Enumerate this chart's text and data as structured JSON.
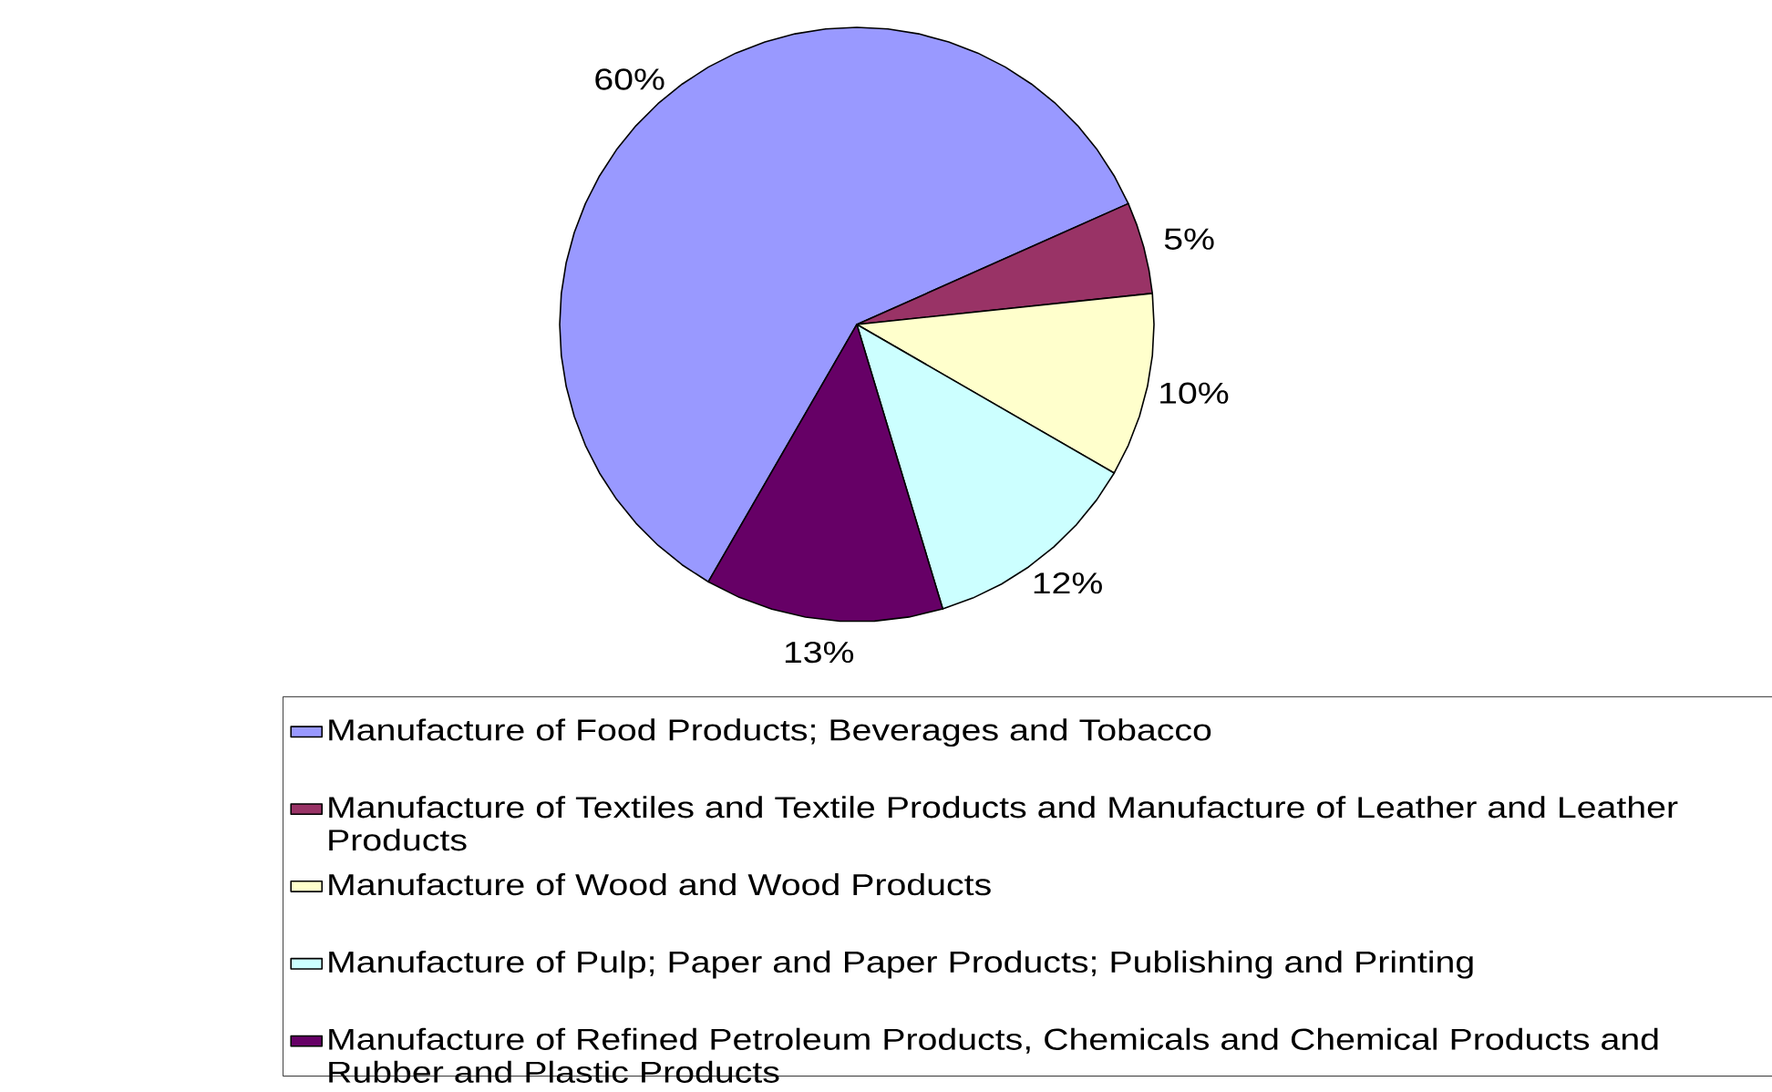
{
  "chart_data": {
    "type": "pie",
    "categories": [
      "Manufacture of Food Products; Beverages and Tobacco",
      "Manufacture of Textiles and Textile Products and Manufacture of Leather and Leather Products",
      "Manufacture of Wood and Wood Products",
      "Manufacture of Pulp; Paper and Paper Products; Publishing and Printing",
      "Manufacture of Refined Petroleum Products, Chemicals and Chemical Products and Rubber and Plastic Products"
    ],
    "values": [
      60,
      5,
      10,
      12,
      13
    ],
    "value_labels": [
      "60%",
      "5%",
      "10%",
      "12%",
      "13%"
    ],
    "colors": [
      "#9999ff",
      "#993366",
      "#ffffcc",
      "#ccffff",
      "#660066"
    ],
    "legend": "bottom"
  }
}
